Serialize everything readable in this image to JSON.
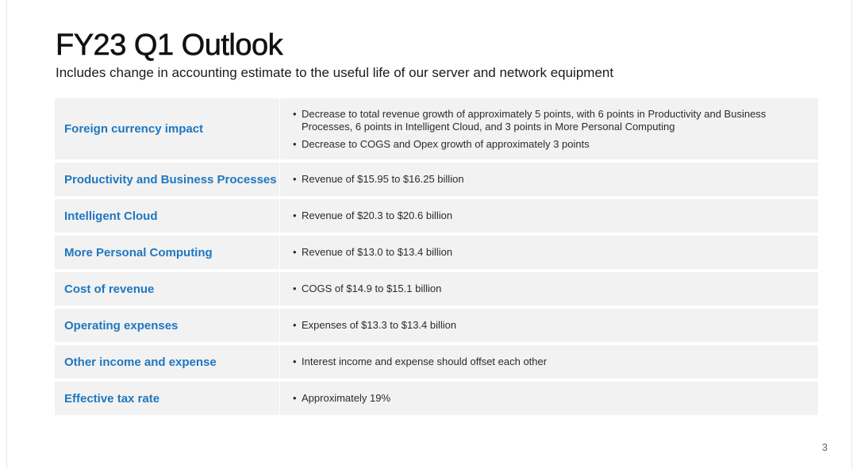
{
  "slide": {
    "title": "FY23 Q1 Outlook",
    "subtitle": "Includes change in accounting estimate to the useful life of our server and network equipment",
    "page_number": "3"
  },
  "table": {
    "rows": [
      {
        "label": "Foreign currency impact",
        "bullets": [
          "Decrease to total revenue growth of approximately 5 points, with 6 points in Productivity and Business Processes, 6 points in Intelligent Cloud, and 3 points in More Personal Computing",
          "Decrease to COGS and Opex growth of approximately 3 points"
        ]
      },
      {
        "label": "Productivity and Business Processes",
        "bullets": [
          "Revenue of $15.95 to $16.25 billion"
        ]
      },
      {
        "label": "Intelligent Cloud",
        "bullets": [
          "Revenue of $20.3 to $20.6 billion"
        ]
      },
      {
        "label": "More Personal Computing",
        "bullets": [
          "Revenue of $13.0 to $13.4 billion"
        ]
      },
      {
        "label": "Cost of revenue",
        "bullets": [
          "COGS of $14.9 to $15.1 billion"
        ]
      },
      {
        "label": "Operating expenses",
        "bullets": [
          "Expenses of $13.3 to $13.4 billion"
        ]
      },
      {
        "label": "Other income and expense",
        "bullets": [
          "Interest income and expense should offset each other"
        ]
      },
      {
        "label": "Effective tax rate",
        "bullets": [
          "Approximately 19%"
        ]
      }
    ]
  },
  "colors": {
    "label_text": "#1f77c0",
    "row_background": "#f2f2f2",
    "title_text": "#111111"
  }
}
